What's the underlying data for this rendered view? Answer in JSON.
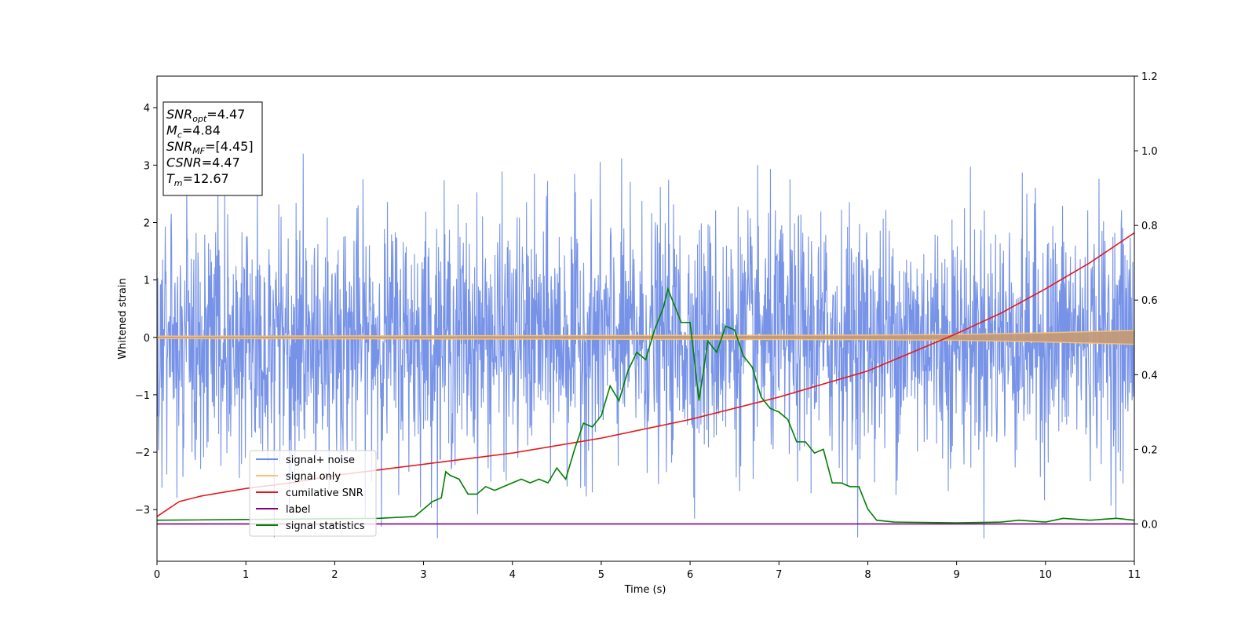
{
  "chart_data": {
    "type": "line",
    "xlabel": "Time (s)",
    "ylabel": "Whitened strain",
    "xlim": [
      0,
      11
    ],
    "ylim": [
      -3.9,
      4.55
    ],
    "y2lim": [
      -0.1,
      1.2
    ],
    "xticks": [
      0,
      1,
      2,
      3,
      4,
      5,
      6,
      7,
      8,
      9,
      10,
      11
    ],
    "yticks": [
      -3,
      -2,
      -1,
      0,
      1,
      2,
      3,
      4
    ],
    "y2ticks": [
      0.0,
      0.2,
      0.4,
      0.6,
      0.8,
      1.0,
      1.2
    ],
    "grid": false,
    "legend_position": "lower-left",
    "colors": {
      "noise": "#6b8ae6",
      "signal": "#f5c37a",
      "snr": "#e31a1c",
      "label": "#800080",
      "stats": "#008000"
    },
    "series": [
      {
        "name": "signal+ noise",
        "axis": "left",
        "description_range": [
          -3.5,
          4.15
        ]
      },
      {
        "name": "signal only",
        "axis": "left",
        "envelope": {
          "x": [
            0,
            2,
            4,
            6,
            8,
            9,
            10,
            11
          ],
          "y": [
            0.02,
            0.025,
            0.03,
            0.035,
            0.04,
            0.05,
            0.08,
            0.12
          ]
        }
      },
      {
        "name": "cumilative SNR",
        "axis": "right",
        "x": [
          0,
          0.25,
          0.5,
          1,
          1.5,
          2,
          3,
          4,
          5,
          6,
          7,
          8,
          9,
          9.5,
          10,
          10.5,
          11
        ],
        "y": [
          0.02,
          0.06,
          0.075,
          0.095,
          0.11,
          0.13,
          0.16,
          0.19,
          0.23,
          0.28,
          0.34,
          0.41,
          0.51,
          0.565,
          0.63,
          0.7,
          0.78
        ]
      },
      {
        "name": "label",
        "axis": "right",
        "x": [
          0,
          11
        ],
        "y": [
          0.0,
          0.0
        ]
      },
      {
        "name": "signal statistics",
        "axis": "right",
        "x": [
          0,
          2.5,
          2.9,
          3.0,
          3.1,
          3.2,
          3.25,
          3.3,
          3.4,
          3.5,
          3.6,
          3.7,
          3.8,
          3.9,
          4.0,
          4.1,
          4.2,
          4.3,
          4.4,
          4.5,
          4.6,
          4.7,
          4.8,
          4.9,
          5.0,
          5.1,
          5.2,
          5.3,
          5.4,
          5.5,
          5.6,
          5.7,
          5.75,
          5.8,
          5.9,
          6.0,
          6.1,
          6.2,
          6.3,
          6.4,
          6.5,
          6.6,
          6.7,
          6.8,
          6.9,
          7.0,
          7.1,
          7.2,
          7.3,
          7.4,
          7.5,
          7.6,
          7.7,
          7.8,
          7.9,
          8.0,
          8.1,
          8.3,
          9.0,
          9.5,
          9.7,
          10.0,
          10.2,
          10.5,
          10.8,
          11.0
        ],
        "y": [
          0.01,
          0.015,
          0.02,
          0.04,
          0.06,
          0.07,
          0.14,
          0.13,
          0.12,
          0.08,
          0.08,
          0.1,
          0.09,
          0.1,
          0.11,
          0.12,
          0.11,
          0.12,
          0.11,
          0.15,
          0.12,
          0.2,
          0.27,
          0.26,
          0.29,
          0.37,
          0.33,
          0.41,
          0.46,
          0.44,
          0.52,
          0.58,
          0.63,
          0.6,
          0.54,
          0.54,
          0.33,
          0.49,
          0.46,
          0.53,
          0.52,
          0.45,
          0.42,
          0.34,
          0.31,
          0.3,
          0.28,
          0.22,
          0.22,
          0.19,
          0.2,
          0.11,
          0.11,
          0.1,
          0.1,
          0.04,
          0.01,
          0.005,
          0.003,
          0.005,
          0.01,
          0.005,
          0.015,
          0.01,
          0.015,
          0.01
        ]
      }
    ],
    "annotation_lines": [
      {
        "name": "SNR",
        "sub": "opt",
        "value": "=4.47"
      },
      {
        "name": "M",
        "sub": "c",
        "value": "=4.84"
      },
      {
        "name": "SNR",
        "sub": "MF",
        "value": "=[4.45]"
      },
      {
        "name": "CSNR",
        "sub": "",
        "value": "=4.47"
      },
      {
        "name": "T",
        "sub": "m",
        "value": "=12.67"
      }
    ]
  }
}
